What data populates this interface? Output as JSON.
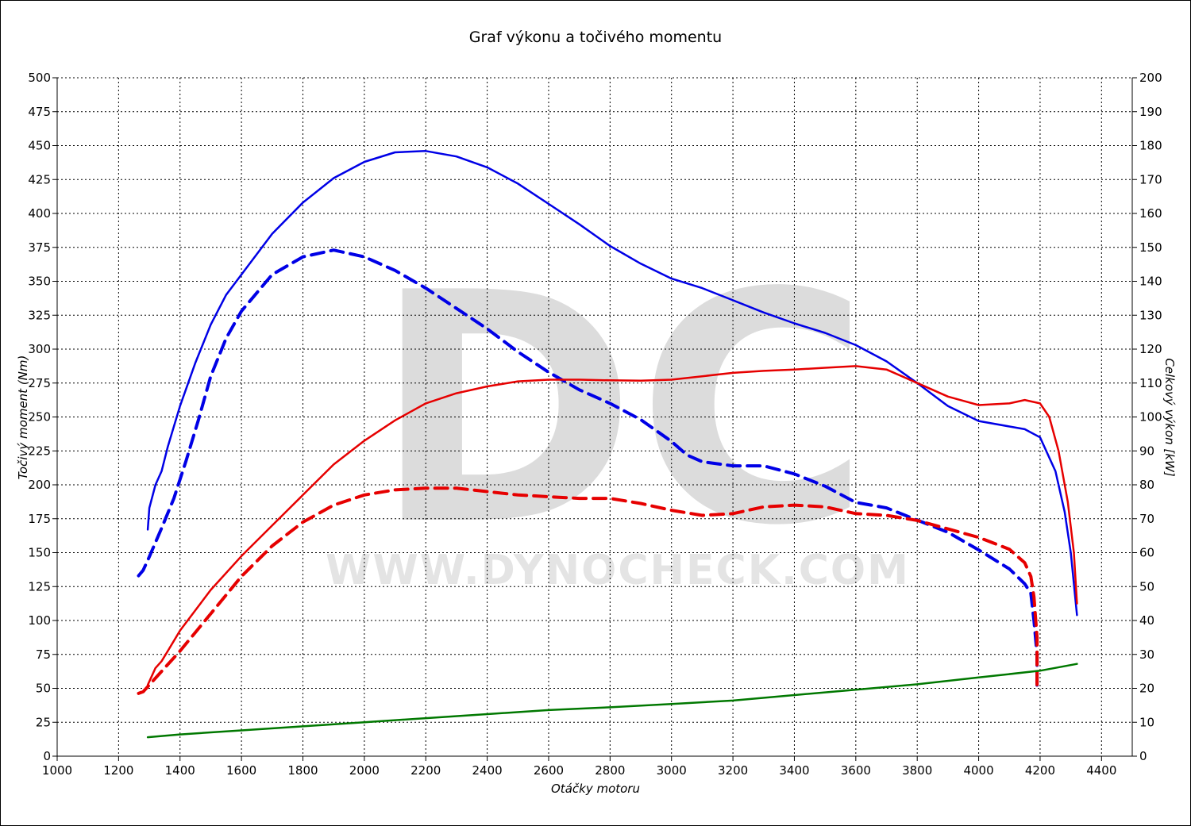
{
  "chart_data": {
    "type": "line",
    "title": "Graf výkonu a točivého momentu",
    "xlabel": "Otáčky motoru",
    "ylabel_left": "Točivý moment (Nm)",
    "ylabel_right": "Celkový výkon [kW]",
    "xlim": [
      1000,
      4500
    ],
    "ylim_left": [
      0,
      500
    ],
    "ylim_right": [
      0,
      200
    ],
    "xticks": [
      1000,
      1200,
      1400,
      1600,
      1800,
      2000,
      2200,
      2400,
      2600,
      2800,
      3000,
      3200,
      3400,
      3600,
      3800,
      4000,
      4200,
      4400
    ],
    "yticks_left": [
      0,
      25,
      50,
      75,
      100,
      125,
      150,
      175,
      200,
      225,
      250,
      275,
      300,
      325,
      350,
      375,
      400,
      425,
      450,
      475,
      500
    ],
    "yticks_right": [
      0,
      10,
      20,
      30,
      40,
      50,
      60,
      70,
      80,
      90,
      100,
      110,
      120,
      130,
      140,
      150,
      160,
      170,
      180,
      190,
      200
    ],
    "grid": true,
    "watermark": {
      "logo": "DC",
      "text": "WWW.DYNOCHECK.COM"
    },
    "colors": {
      "blue": "#0000e6",
      "red": "#e60000",
      "green": "#007800"
    },
    "series": [
      {
        "axis": "left",
        "color": "#0000e6",
        "dashed": false,
        "points": [
          [
            1295,
            167
          ],
          [
            1300,
            183
          ],
          [
            1320,
            200
          ],
          [
            1340,
            210
          ],
          [
            1360,
            228
          ],
          [
            1400,
            258
          ],
          [
            1450,
            290
          ],
          [
            1500,
            318
          ],
          [
            1550,
            340
          ],
          [
            1600,
            355
          ],
          [
            1700,
            385
          ],
          [
            1800,
            408
          ],
          [
            1900,
            426
          ],
          [
            2000,
            438
          ],
          [
            2100,
            445
          ],
          [
            2200,
            446
          ],
          [
            2300,
            442
          ],
          [
            2400,
            434
          ],
          [
            2500,
            422
          ],
          [
            2600,
            407
          ],
          [
            2700,
            392
          ],
          [
            2800,
            376
          ],
          [
            2900,
            363
          ],
          [
            3000,
            352
          ],
          [
            3100,
            345
          ],
          [
            3200,
            336
          ],
          [
            3300,
            327
          ],
          [
            3400,
            319
          ],
          [
            3500,
            312
          ],
          [
            3600,
            303
          ],
          [
            3700,
            291
          ],
          [
            3800,
            275
          ],
          [
            3900,
            258
          ],
          [
            4000,
            247
          ],
          [
            4100,
            243
          ],
          [
            4150,
            241
          ],
          [
            4200,
            235
          ],
          [
            4250,
            210
          ],
          [
            4280,
            180
          ],
          [
            4300,
            150
          ],
          [
            4320,
            104
          ]
        ]
      },
      {
        "axis": "left",
        "color": "#0000e6",
        "dashed": true,
        "points": [
          [
            1265,
            133
          ],
          [
            1280,
            137
          ],
          [
            1300,
            147
          ],
          [
            1340,
            168
          ],
          [
            1380,
            190
          ],
          [
            1420,
            218
          ],
          [
            1460,
            248
          ],
          [
            1500,
            280
          ],
          [
            1550,
            308
          ],
          [
            1600,
            328
          ],
          [
            1700,
            355
          ],
          [
            1800,
            368
          ],
          [
            1900,
            373
          ],
          [
            2000,
            368
          ],
          [
            2100,
            358
          ],
          [
            2200,
            345
          ],
          [
            2300,
            330
          ],
          [
            2400,
            315
          ],
          [
            2500,
            298
          ],
          [
            2600,
            283
          ],
          [
            2700,
            270
          ],
          [
            2800,
            260
          ],
          [
            2900,
            248
          ],
          [
            3000,
            232
          ],
          [
            3050,
            222
          ],
          [
            3100,
            217
          ],
          [
            3200,
            214
          ],
          [
            3300,
            214
          ],
          [
            3400,
            208
          ],
          [
            3500,
            199
          ],
          [
            3600,
            187
          ],
          [
            3650,
            185
          ],
          [
            3700,
            183
          ],
          [
            3800,
            174
          ],
          [
            3900,
            165
          ],
          [
            4000,
            152
          ],
          [
            4100,
            138
          ],
          [
            4150,
            127
          ],
          [
            4170,
            120
          ],
          [
            4180,
            100
          ],
          [
            4190,
            75
          ],
          [
            4190,
            50
          ]
        ]
      },
      {
        "axis": "right",
        "color": "#e60000",
        "dashed": false,
        "points": [
          [
            1295,
            21
          ],
          [
            1320,
            26
          ],
          [
            1340,
            28
          ],
          [
            1360,
            31
          ],
          [
            1400,
            37
          ],
          [
            1500,
            49
          ],
          [
            1600,
            59
          ],
          [
            1700,
            68
          ],
          [
            1800,
            77
          ],
          [
            1900,
            86
          ],
          [
            2000,
            93
          ],
          [
            2100,
            99
          ],
          [
            2200,
            104
          ],
          [
            2300,
            107
          ],
          [
            2400,
            109
          ],
          [
            2500,
            110.5
          ],
          [
            2600,
            111
          ],
          [
            2700,
            111
          ],
          [
            2800,
            110.8
          ],
          [
            2900,
            110.7
          ],
          [
            3000,
            111
          ],
          [
            3100,
            112
          ],
          [
            3200,
            113
          ],
          [
            3300,
            113.6
          ],
          [
            3400,
            114
          ],
          [
            3500,
            114.5
          ],
          [
            3600,
            115
          ],
          [
            3700,
            114
          ],
          [
            3800,
            110
          ],
          [
            3900,
            106
          ],
          [
            4000,
            103.5
          ],
          [
            4100,
            104
          ],
          [
            4150,
            105
          ],
          [
            4200,
            104
          ],
          [
            4230,
            100
          ],
          [
            4260,
            90
          ],
          [
            4290,
            75
          ],
          [
            4310,
            60
          ],
          [
            4320,
            45
          ]
        ]
      },
      {
        "axis": "right",
        "color": "#e60000",
        "dashed": true,
        "points": [
          [
            1265,
            18.5
          ],
          [
            1280,
            19
          ],
          [
            1300,
            21
          ],
          [
            1340,
            25
          ],
          [
            1400,
            31
          ],
          [
            1500,
            42
          ],
          [
            1600,
            53
          ],
          [
            1700,
            62
          ],
          [
            1800,
            69
          ],
          [
            1900,
            74
          ],
          [
            2000,
            77
          ],
          [
            2100,
            78.5
          ],
          [
            2200,
            79
          ],
          [
            2300,
            79
          ],
          [
            2400,
            78
          ],
          [
            2500,
            77
          ],
          [
            2600,
            76.5
          ],
          [
            2700,
            76
          ],
          [
            2800,
            76
          ],
          [
            2900,
            74.5
          ],
          [
            3000,
            72.5
          ],
          [
            3100,
            71
          ],
          [
            3200,
            71.5
          ],
          [
            3300,
            73.5
          ],
          [
            3400,
            74
          ],
          [
            3500,
            73.5
          ],
          [
            3600,
            71.5
          ],
          [
            3700,
            71
          ],
          [
            3800,
            69.5
          ],
          [
            3900,
            67
          ],
          [
            4000,
            64.5
          ],
          [
            4100,
            61
          ],
          [
            4150,
            57
          ],
          [
            4170,
            53
          ],
          [
            4180,
            47
          ],
          [
            4190,
            35
          ],
          [
            4190,
            20
          ]
        ]
      },
      {
        "axis": "left",
        "color": "#007800",
        "dashed": false,
        "points": [
          [
            1295,
            14
          ],
          [
            1400,
            16
          ],
          [
            1600,
            19
          ],
          [
            1800,
            22
          ],
          [
            2000,
            25
          ],
          [
            2200,
            28
          ],
          [
            2400,
            31
          ],
          [
            2600,
            34
          ],
          [
            2800,
            36
          ],
          [
            3000,
            38.5
          ],
          [
            3200,
            41
          ],
          [
            3400,
            45
          ],
          [
            3600,
            49
          ],
          [
            3800,
            53
          ],
          [
            4000,
            58
          ],
          [
            4200,
            63
          ],
          [
            4320,
            68
          ]
        ]
      }
    ]
  }
}
